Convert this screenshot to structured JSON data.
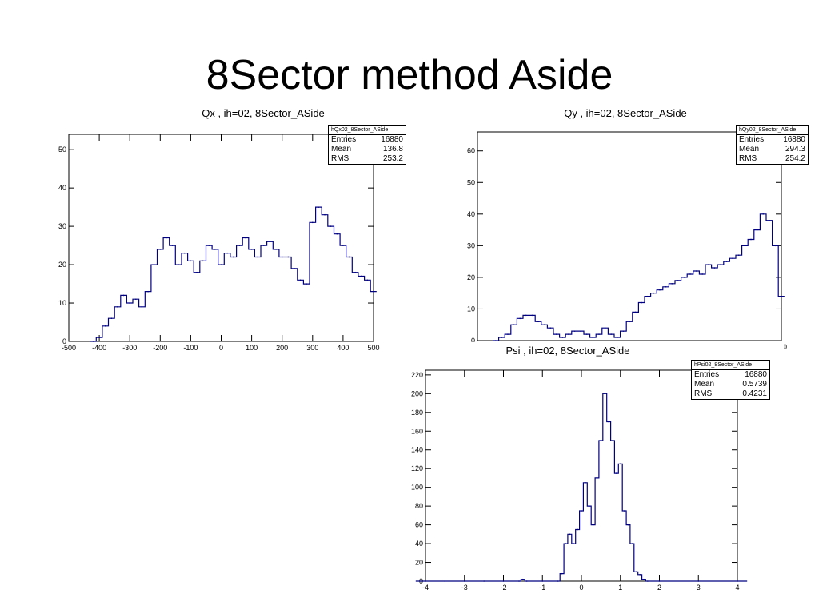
{
  "slide": {
    "title": "8Sector method Aside"
  },
  "colors": {
    "histogram_line": "#000080",
    "axis": "#000000",
    "background": "#ffffff"
  },
  "chart_data": [
    {
      "id": "qx",
      "type": "line",
      "title": "Qx , ih=02, 8Sector_ASide",
      "xlabel": "",
      "ylabel": "",
      "xlim": [
        -500,
        500
      ],
      "ylim": [
        0,
        54
      ],
      "x_ticks": [
        -500,
        -400,
        -300,
        -200,
        -100,
        0,
        100,
        200,
        300,
        400,
        500
      ],
      "y_ticks": [
        0,
        10,
        20,
        30,
        40,
        50
      ],
      "stats": {
        "name": "hQx02_8Sector_ASide",
        "Entries": "16880",
        "Mean": "136.8",
        "RMS": "253.2"
      },
      "series": [
        {
          "x": [
            -420,
            -400,
            -380,
            -360,
            -340,
            -320,
            -300,
            -280,
            -260,
            -240,
            -220,
            -200,
            -180,
            -160,
            -140,
            -120,
            -100,
            -80,
            -60,
            -40,
            -20,
            0,
            20,
            40,
            60,
            80,
            100,
            120,
            140,
            160,
            180,
            200,
            220,
            240,
            260,
            280,
            300,
            320,
            340,
            360,
            380,
            400,
            420,
            440,
            460,
            480,
            500
          ],
          "y": [
            0,
            1,
            4,
            6,
            9,
            12,
            10,
            11,
            9,
            13,
            20,
            24,
            27,
            25,
            20,
            23,
            21,
            18,
            21,
            25,
            24,
            20,
            23,
            22,
            25,
            27,
            24,
            22,
            25,
            26,
            24,
            22,
            22,
            19,
            16,
            15,
            31,
            35,
            33,
            30,
            28,
            25,
            22,
            18,
            17,
            16,
            13
          ]
        }
      ]
    },
    {
      "id": "qy",
      "type": "line",
      "title": "Qy , ih=02, 8Sector_ASide",
      "xlabel": "",
      "ylabel": "",
      "xlim": [
        -500,
        500
      ],
      "ylim": [
        0,
        66
      ],
      "visible_x_tick_labels": [
        "00"
      ],
      "y_ticks": [
        0,
        10,
        20,
        30,
        40,
        50,
        60
      ],
      "stats": {
        "name": "hQy02_8Sector_ASide",
        "Entries": "16880",
        "Mean": "294.3",
        "RMS": "254.2"
      },
      "series": [
        {
          "x": [
            -440,
            -420,
            -400,
            -380,
            -360,
            -340,
            -320,
            -300,
            -280,
            -260,
            -240,
            -220,
            -200,
            -180,
            -160,
            -140,
            -120,
            -100,
            -80,
            -60,
            -40,
            -20,
            0,
            20,
            40,
            60,
            80,
            100,
            120,
            140,
            160,
            180,
            200,
            220,
            240,
            260,
            280,
            300,
            320,
            340,
            360,
            380,
            400,
            420,
            440,
            460,
            480,
            500
          ],
          "y": [
            0,
            1,
            2,
            5,
            7,
            8,
            8,
            6,
            5,
            4,
            2,
            1,
            2,
            3,
            3,
            2,
            1,
            2,
            4,
            2,
            1,
            3,
            6,
            9,
            12,
            14,
            15,
            16,
            17,
            18,
            19,
            20,
            21,
            22,
            21,
            24,
            23,
            24,
            25,
            26,
            27,
            30,
            32,
            35,
            40,
            38,
            30,
            14
          ]
        }
      ]
    },
    {
      "id": "psi",
      "type": "line",
      "title": "Psi , ih=02, 8Sector_ASide",
      "xlabel": "",
      "ylabel": "",
      "xlim": [
        -4,
        4
      ],
      "ylim": [
        0,
        225
      ],
      "x_ticks": [
        -4,
        -3,
        -2,
        -1,
        0,
        1,
        2,
        3,
        4
      ],
      "y_ticks": [
        0,
        20,
        40,
        60,
        80,
        100,
        120,
        140,
        160,
        180,
        200,
        220
      ],
      "stats": {
        "name": "hPsi02_8Sector_ASide",
        "Entries": "16880",
        "Mean": "0.5739",
        "RMS": "0.4231"
      },
      "series": [
        {
          "x": [
            -4,
            -3.5,
            -3,
            -2.5,
            -2,
            -1.6,
            -1.5,
            -1.4,
            -1,
            -0.6,
            -0.5,
            -0.4,
            -0.3,
            -0.2,
            -0.1,
            0,
            0.1,
            0.2,
            0.3,
            0.4,
            0.5,
            0.6,
            0.7,
            0.8,
            0.9,
            1,
            1.1,
            1.2,
            1.3,
            1.4,
            1.5,
            1.6,
            1.7,
            2,
            3,
            4
          ],
          "y": [
            0,
            0,
            0,
            0,
            0,
            0,
            2,
            0,
            0,
            0,
            8,
            40,
            50,
            40,
            55,
            75,
            105,
            80,
            60,
            110,
            150,
            200,
            170,
            150,
            115,
            125,
            75,
            60,
            40,
            10,
            7,
            2,
            0,
            0,
            0,
            0
          ]
        }
      ]
    }
  ]
}
